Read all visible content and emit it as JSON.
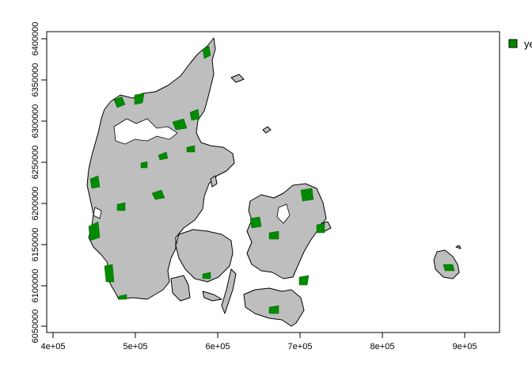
{
  "map": {
    "x_ticks": [
      "4e+05",
      "5e+05",
      "6e+05",
      "7e+05",
      "8e+05",
      "9e+05"
    ],
    "y_ticks": [
      "6050000",
      "6100000",
      "6150000",
      "6200000",
      "6250000",
      "6300000",
      "6350000",
      "6400000"
    ],
    "land_color": "#bebebe",
    "feature_color": "#008b00",
    "outline_color": "#000000"
  },
  "legend": {
    "label": "yes",
    "color": "#008b00"
  }
}
